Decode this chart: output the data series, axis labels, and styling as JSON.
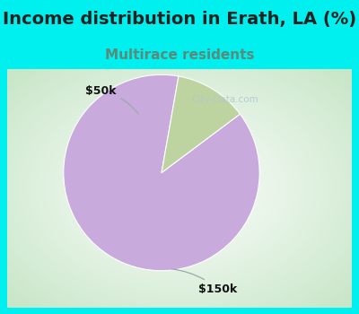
{
  "title": "Income distribution in Erath, LA (%)",
  "subtitle": "Multirace residents",
  "title_fontsize": 14,
  "subtitle_fontsize": 11,
  "title_color": "#222222",
  "subtitle_color": "#5a8a7a",
  "top_bg_color": "#00EFEF",
  "slices": [
    {
      "label": "$150k",
      "value": 88,
      "color": "#C8AADC"
    },
    {
      "label": "$50k",
      "value": 12,
      "color": "#BDD4A0"
    }
  ],
  "pie_startangle": 80,
  "label_fontsize": 9,
  "watermark": "City-Data.com",
  "watermark_color": "#b0c8cc",
  "watermark_icon_color": "#90b0b8"
}
